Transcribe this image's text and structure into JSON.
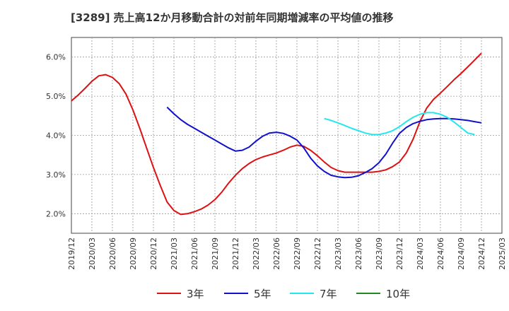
{
  "chart_data": {
    "type": "line",
    "title": "[3289]  売上高12か月移動合計の対前年同期増減率の平均値の推移",
    "xlabel": "",
    "ylabel": "",
    "ylim": [
      1.5,
      6.5
    ],
    "yticks": [
      2.0,
      3.0,
      4.0,
      5.0,
      6.0
    ],
    "ytick_labels": [
      "2.0%",
      "3.0%",
      "4.0%",
      "5.0%",
      "6.0%"
    ],
    "xtick_labels": [
      "2019/12",
      "2020/03",
      "2020/06",
      "2020/09",
      "2020/12",
      "2021/03",
      "2021/06",
      "2021/09",
      "2021/12",
      "2022/03",
      "2022/06",
      "2022/09",
      "2022/12",
      "2023/03",
      "2023/06",
      "2023/09",
      "2023/12",
      "2024/03",
      "2024/06",
      "2024/09",
      "2024/12",
      "2025/03"
    ],
    "grid": true,
    "legend_position": "bottom",
    "series": [
      {
        "name": "3年",
        "color": "#dd1111",
        "points": [
          [
            "2019/12",
            4.88
          ],
          [
            "2020/01",
            5.03
          ],
          [
            "2020/02",
            5.2
          ],
          [
            "2020/03",
            5.38
          ],
          [
            "2020/04",
            5.52
          ],
          [
            "2020/05",
            5.55
          ],
          [
            "2020/06",
            5.48
          ],
          [
            "2020/07",
            5.32
          ],
          [
            "2020/08",
            5.05
          ],
          [
            "2020/09",
            4.65
          ],
          [
            "2020/10",
            4.18
          ],
          [
            "2020/11",
            3.68
          ],
          [
            "2020/12",
            3.18
          ],
          [
            "2021/01",
            2.72
          ],
          [
            "2021/02",
            2.3
          ],
          [
            "2021/03",
            2.08
          ],
          [
            "2021/04",
            1.98
          ],
          [
            "2021/05",
            2.0
          ],
          [
            "2021/06",
            2.05
          ],
          [
            "2021/07",
            2.12
          ],
          [
            "2021/08",
            2.22
          ],
          [
            "2021/09",
            2.36
          ],
          [
            "2021/10",
            2.55
          ],
          [
            "2021/11",
            2.78
          ],
          [
            "2021/12",
            2.98
          ],
          [
            "2022/01",
            3.15
          ],
          [
            "2022/02",
            3.28
          ],
          [
            "2022/03",
            3.38
          ],
          [
            "2022/04",
            3.45
          ],
          [
            "2022/05",
            3.5
          ],
          [
            "2022/06",
            3.55
          ],
          [
            "2022/07",
            3.62
          ],
          [
            "2022/08",
            3.7
          ],
          [
            "2022/09",
            3.75
          ],
          [
            "2022/10",
            3.72
          ],
          [
            "2022/11",
            3.62
          ],
          [
            "2022/12",
            3.48
          ],
          [
            "2023/01",
            3.32
          ],
          [
            "2023/02",
            3.18
          ],
          [
            "2023/03",
            3.1
          ],
          [
            "2023/04",
            3.06
          ],
          [
            "2023/05",
            3.06
          ],
          [
            "2023/06",
            3.06
          ],
          [
            "2023/07",
            3.06
          ],
          [
            "2023/08",
            3.06
          ],
          [
            "2023/09",
            3.08
          ],
          [
            "2023/10",
            3.12
          ],
          [
            "2023/11",
            3.2
          ],
          [
            "2023/12",
            3.32
          ],
          [
            "2024/01",
            3.55
          ],
          [
            "2024/02",
            3.9
          ],
          [
            "2024/03",
            4.35
          ],
          [
            "2024/04",
            4.7
          ],
          [
            "2024/05",
            4.92
          ],
          [
            "2024/06",
            5.08
          ],
          [
            "2024/07",
            5.25
          ],
          [
            "2024/08",
            5.42
          ],
          [
            "2024/09",
            5.58
          ],
          [
            "2024/10",
            5.75
          ],
          [
            "2024/11",
            5.92
          ],
          [
            "2024/12",
            6.1
          ]
        ]
      },
      {
        "name": "5年",
        "color": "#1111cc",
        "points": [
          [
            "2021/02",
            4.72
          ],
          [
            "2021/03",
            4.55
          ],
          [
            "2021/04",
            4.4
          ],
          [
            "2021/05",
            4.28
          ],
          [
            "2021/06",
            4.18
          ],
          [
            "2021/07",
            4.08
          ],
          [
            "2021/08",
            3.98
          ],
          [
            "2021/09",
            3.88
          ],
          [
            "2021/10",
            3.78
          ],
          [
            "2021/11",
            3.68
          ],
          [
            "2021/12",
            3.6
          ],
          [
            "2022/01",
            3.62
          ],
          [
            "2022/02",
            3.7
          ],
          [
            "2022/03",
            3.85
          ],
          [
            "2022/04",
            3.98
          ],
          [
            "2022/05",
            4.06
          ],
          [
            "2022/06",
            4.08
          ],
          [
            "2022/07",
            4.05
          ],
          [
            "2022/08",
            3.98
          ],
          [
            "2022/09",
            3.88
          ],
          [
            "2022/10",
            3.68
          ],
          [
            "2022/11",
            3.42
          ],
          [
            "2022/12",
            3.22
          ],
          [
            "2023/01",
            3.08
          ],
          [
            "2023/02",
            2.98
          ],
          [
            "2023/03",
            2.94
          ],
          [
            "2023/04",
            2.92
          ],
          [
            "2023/05",
            2.93
          ],
          [
            "2023/06",
            2.97
          ],
          [
            "2023/07",
            3.05
          ],
          [
            "2023/08",
            3.15
          ],
          [
            "2023/09",
            3.3
          ],
          [
            "2023/10",
            3.52
          ],
          [
            "2023/11",
            3.8
          ],
          [
            "2023/12",
            4.05
          ],
          [
            "2024/01",
            4.2
          ],
          [
            "2024/02",
            4.3
          ],
          [
            "2024/03",
            4.36
          ],
          [
            "2024/04",
            4.4
          ],
          [
            "2024/05",
            4.42
          ],
          [
            "2024/06",
            4.43
          ],
          [
            "2024/07",
            4.43
          ],
          [
            "2024/08",
            4.42
          ],
          [
            "2024/09",
            4.4
          ],
          [
            "2024/10",
            4.38
          ],
          [
            "2024/11",
            4.35
          ],
          [
            "2024/12",
            4.32
          ]
        ]
      },
      {
        "name": "7年",
        "color": "#22e8ee",
        "points": [
          [
            "2023/01",
            4.43
          ],
          [
            "2023/02",
            4.38
          ],
          [
            "2023/03",
            4.32
          ],
          [
            "2023/04",
            4.25
          ],
          [
            "2023/05",
            4.18
          ],
          [
            "2023/06",
            4.12
          ],
          [
            "2023/07",
            4.06
          ],
          [
            "2023/08",
            4.02
          ],
          [
            "2023/09",
            4.02
          ],
          [
            "2023/10",
            4.06
          ],
          [
            "2023/11",
            4.12
          ],
          [
            "2023/12",
            4.22
          ],
          [
            "2024/01",
            4.35
          ],
          [
            "2024/02",
            4.46
          ],
          [
            "2024/03",
            4.54
          ],
          [
            "2024/04",
            4.58
          ],
          [
            "2024/05",
            4.58
          ],
          [
            "2024/06",
            4.54
          ],
          [
            "2024/07",
            4.46
          ],
          [
            "2024/08",
            4.34
          ],
          [
            "2024/09",
            4.2
          ],
          [
            "2024/10",
            4.06
          ],
          [
            "2024/11",
            4.02
          ]
        ]
      },
      {
        "name": "10年",
        "color": "#228822",
        "points": []
      }
    ]
  }
}
